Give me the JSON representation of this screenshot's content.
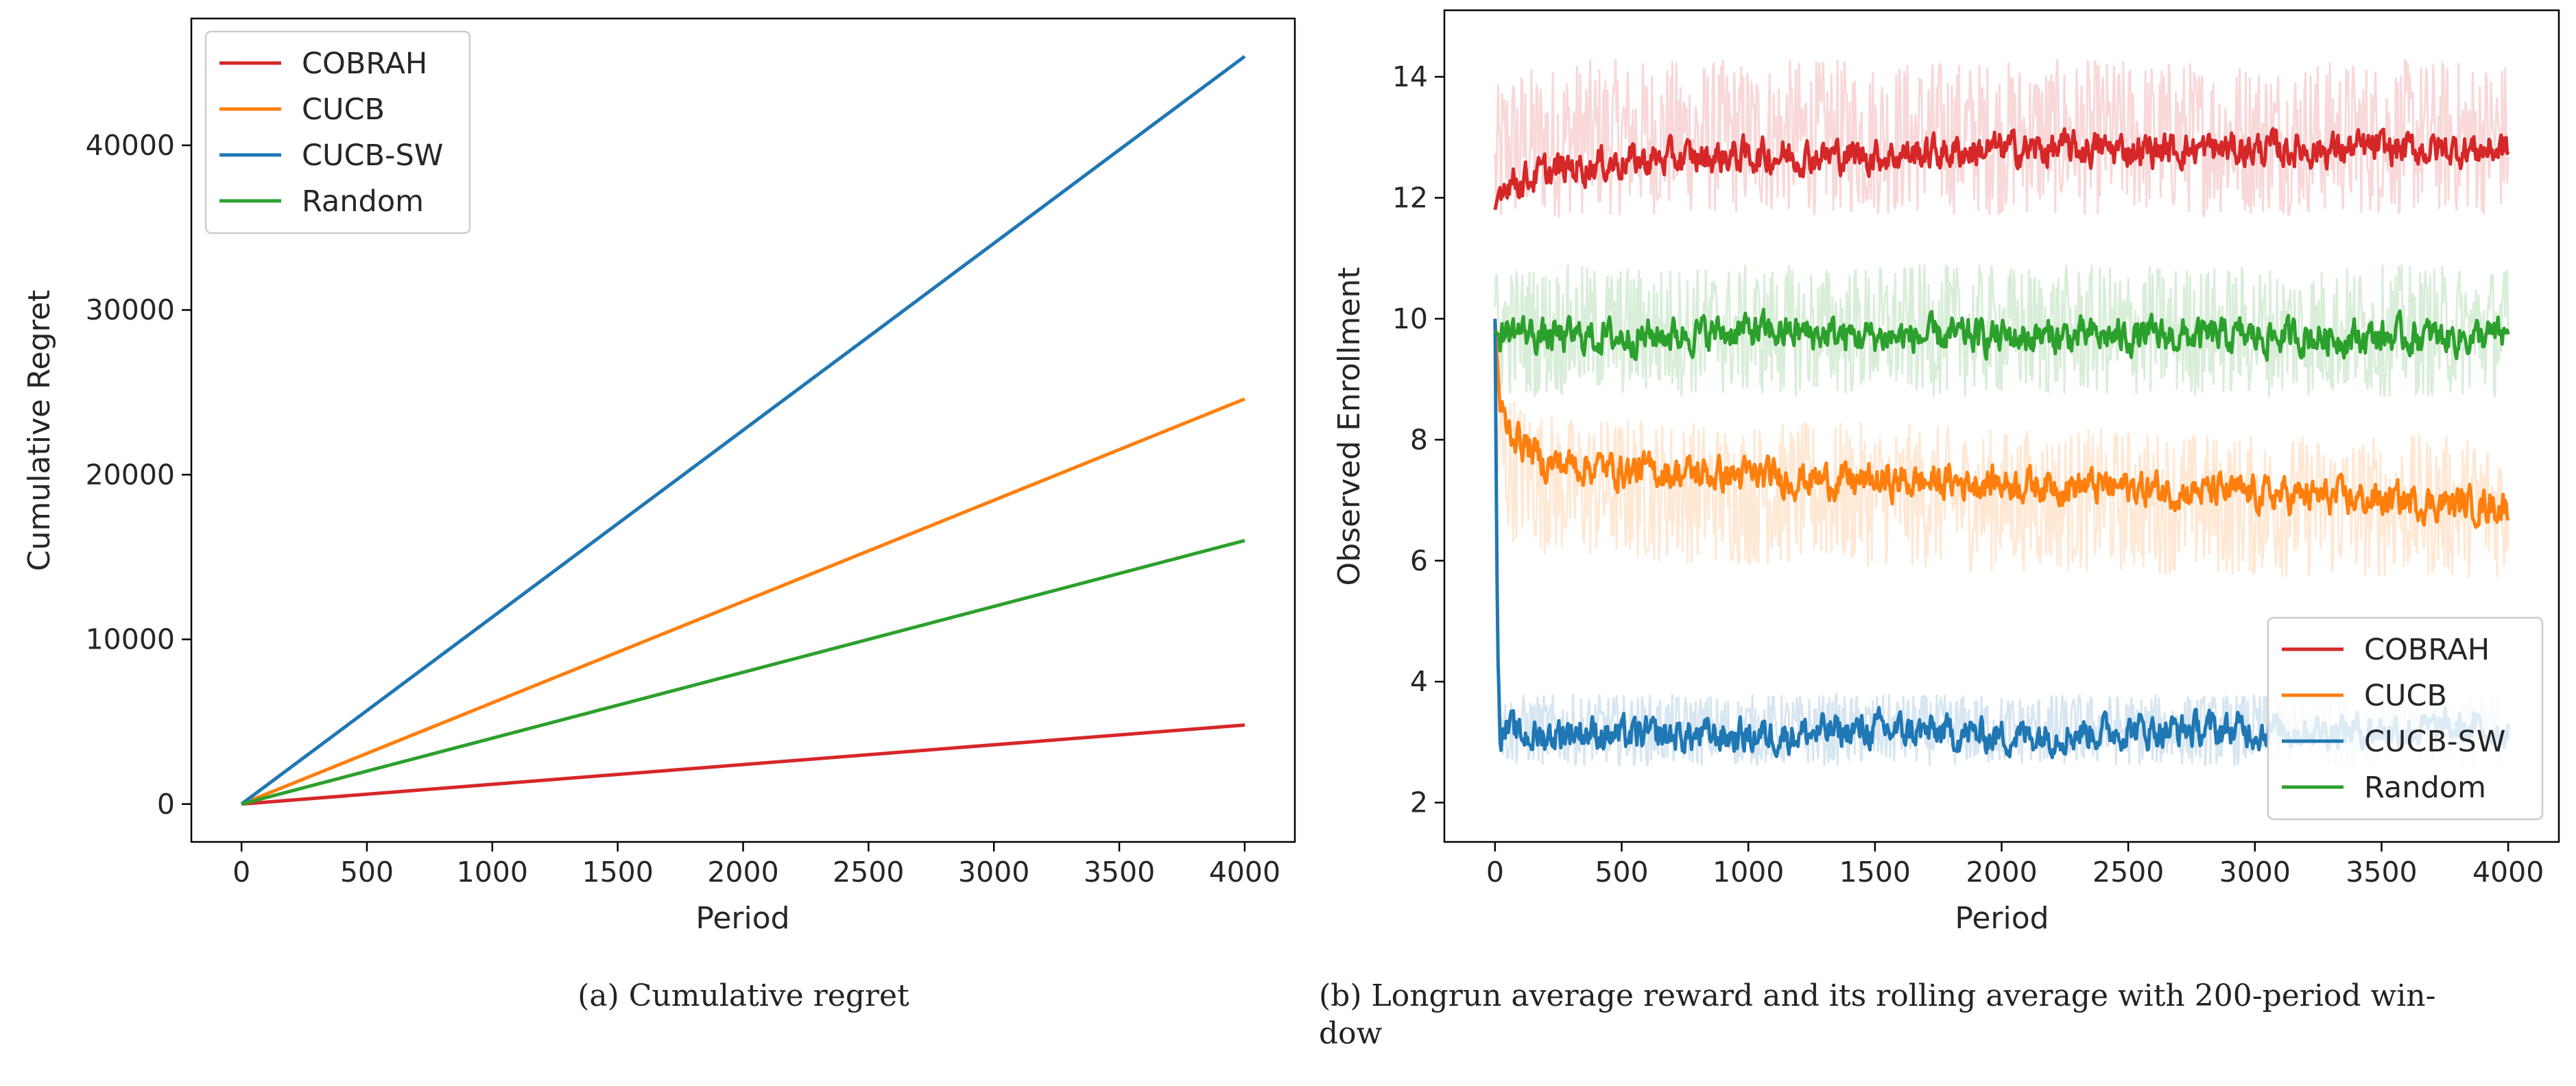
{
  "colors": {
    "COBRAH": "#d62728",
    "CUCB": "#ff7f0e",
    "CUCB-SW": "#1f77b4",
    "Random": "#2ca02c"
  },
  "chart_data": [
    {
      "type": "line",
      "xlabel": "Period",
      "ylabel": "Cumulative Regret",
      "xlim": [
        -200,
        4200
      ],
      "ylim": [
        -2300,
        47700
      ],
      "xticks": [
        "0",
        "500",
        "1000",
        "1500",
        "2000",
        "2500",
        "3000",
        "3500",
        "4000"
      ],
      "yticks": [
        "0",
        "10000",
        "20000",
        "30000",
        "40000"
      ],
      "legend": "upper-left",
      "grid": false,
      "series": [
        {
          "name": "COBRAH",
          "x": [
            0,
            4000
          ],
          "y": [
            0,
            4800
          ]
        },
        {
          "name": "CUCB",
          "x": [
            0,
            4000
          ],
          "y": [
            0,
            24600
          ]
        },
        {
          "name": "CUCB-SW",
          "x": [
            0,
            4000
          ],
          "y": [
            0,
            45400
          ]
        },
        {
          "name": "Random",
          "x": [
            0,
            4000
          ],
          "y": [
            0,
            16000
          ]
        }
      ],
      "caption": "(a) Cumulative regret"
    },
    {
      "type": "line",
      "xlabel": "Period",
      "ylabel": "Observed Enrollment",
      "xlim": [
        -200,
        4200
      ],
      "ylim": [
        1.35,
        15.1
      ],
      "xticks": [
        "0",
        "500",
        "1000",
        "1500",
        "2000",
        "2500",
        "3000",
        "3500",
        "4000"
      ],
      "yticks": [
        "2",
        "4",
        "6",
        "8",
        "10",
        "12",
        "14"
      ],
      "legend": "lower-right",
      "grid": false,
      "series": [
        {
          "name": "COBRAH",
          "x": [
            0,
            20,
            50,
            100,
            200,
            300,
            500,
            1000,
            1500,
            2000,
            2500,
            3000,
            3500,
            4000
          ],
          "y": [
            11.8,
            12.2,
            12.3,
            12.3,
            12.4,
            12.5,
            12.6,
            12.7,
            12.7,
            12.8,
            12.8,
            12.8,
            12.8,
            12.8
          ],
          "raw_y": [
            12.3,
            12.6,
            12.8,
            12.9,
            12.9,
            13.0,
            13.0,
            13.0,
            13.0,
            13.0,
            13.0,
            13.0,
            13.0,
            13.0
          ],
          "raw_spread": [
            1.4,
            1.4,
            1.4,
            1.3,
            1.3,
            1.3,
            1.3,
            1.3,
            1.3,
            1.3,
            1.3,
            1.3,
            1.3,
            1.3
          ]
        },
        {
          "name": "CUCB",
          "x": [
            0,
            20,
            50,
            100,
            200,
            300,
            500,
            1000,
            1500,
            2000,
            2500,
            3000,
            3500,
            4000
          ],
          "y": [
            10.0,
            8.5,
            8.2,
            8.0,
            7.6,
            7.6,
            7.5,
            7.4,
            7.3,
            7.3,
            7.2,
            7.1,
            7.0,
            6.9
          ],
          "raw_y": [
            8.2,
            7.8,
            7.6,
            7.5,
            7.3,
            7.2,
            7.2,
            7.1,
            7.1,
            7.0,
            7.0,
            6.9,
            6.9,
            6.9
          ],
          "raw_spread": [
            1.6,
            1.4,
            1.3,
            1.2,
            1.2,
            1.2,
            1.2,
            1.2,
            1.2,
            1.2,
            1.2,
            1.2,
            1.2,
            1.2
          ]
        },
        {
          "name": "CUCB-SW",
          "x": [
            0,
            10,
            20,
            50,
            100,
            200,
            300,
            500,
            1000,
            1500,
            2000,
            2500,
            3000,
            3500,
            4000
          ],
          "y": [
            10.0,
            4.6,
            3.2,
            3.2,
            3.1,
            3.1,
            3.2,
            3.1,
            3.1,
            3.2,
            3.1,
            3.2,
            3.2,
            3.2,
            3.2
          ],
          "raw_y": [
            10.0,
            4.2,
            3.3,
            3.2,
            3.2,
            3.2,
            3.2,
            3.2,
            3.2,
            3.2,
            3.2,
            3.2,
            3.2,
            3.2,
            3.2
          ],
          "raw_spread": [
            0.8,
            0.8,
            0.6,
            0.6,
            0.6,
            0.6,
            0.6,
            0.6,
            0.6,
            0.6,
            0.6,
            0.6,
            0.6,
            0.6,
            0.6
          ]
        },
        {
          "name": "Random",
          "x": [
            0,
            20,
            50,
            100,
            200,
            300,
            500,
            1000,
            1500,
            2000,
            2500,
            3000,
            3500,
            4000
          ],
          "y": [
            9.8,
            9.7,
            9.8,
            9.8,
            9.7,
            9.7,
            9.7,
            9.8,
            9.7,
            9.7,
            9.7,
            9.7,
            9.7,
            9.7
          ],
          "raw_y": [
            9.8,
            9.8,
            9.8,
            9.8,
            9.8,
            9.8,
            9.8,
            9.8,
            9.8,
            9.8,
            9.8,
            9.8,
            9.8,
            9.8
          ],
          "raw_spread": [
            1.1,
            1.1,
            1.1,
            1.1,
            1.1,
            1.1,
            1.1,
            1.1,
            1.1,
            1.1,
            1.1,
            1.1,
            1.1,
            1.1
          ]
        }
      ],
      "caption_lines": [
        "(b) Longrun average reward and its rolling average with 200-period win-",
        "dow"
      ]
    }
  ]
}
